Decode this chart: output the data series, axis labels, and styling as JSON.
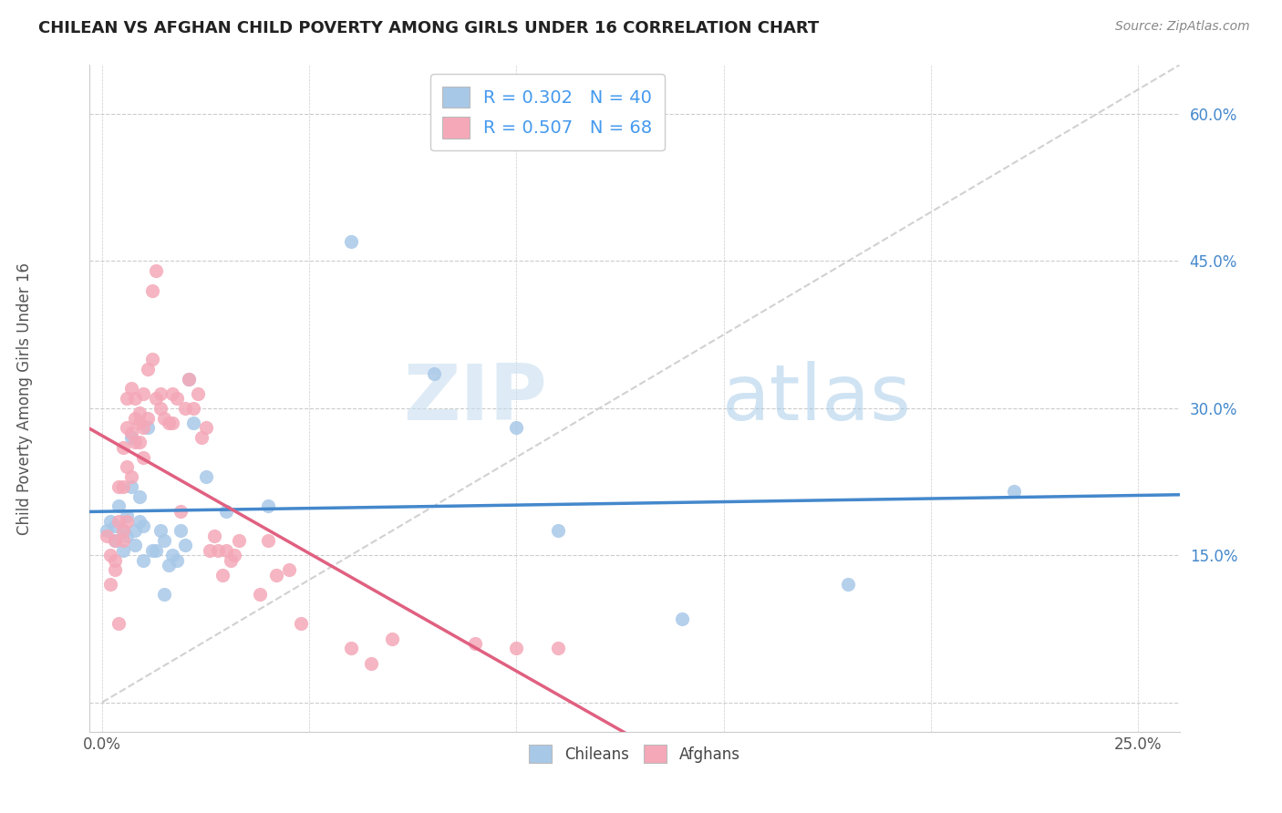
{
  "title": "CHILEAN VS AFGHAN CHILD POVERTY AMONG GIRLS UNDER 16 CORRELATION CHART",
  "source": "Source: ZipAtlas.com",
  "ylabel": "Child Poverty Among Girls Under 16",
  "xlim": [
    -0.3,
    26.0
  ],
  "ylim": [
    -3.0,
    65.0
  ],
  "x_ticks": [
    0.0,
    5.0,
    10.0,
    15.0,
    20.0,
    25.0
  ],
  "x_tick_labels": [
    "0.0%",
    "",
    "",
    "",
    "",
    "25.0%"
  ],
  "y_ticks": [
    0.0,
    15.0,
    30.0,
    45.0,
    60.0
  ],
  "y_tick_labels": [
    "",
    "15.0%",
    "30.0%",
    "45.0%",
    "60.0%"
  ],
  "chilean_R": 0.302,
  "chilean_N": 40,
  "afghan_R": 0.507,
  "afghan_N": 68,
  "chilean_color": "#a8c8e8",
  "afghan_color": "#f4a8b8",
  "chilean_line_color": "#4488cc",
  "afghan_line_color": "#e06080",
  "diagonal_color": "#cccccc",
  "legend_text_color": "#4499ee",
  "watermark_zip": "ZIP",
  "watermark_atlas": "atlas",
  "chilean_points": [
    [
      0.1,
      17.5
    ],
    [
      0.2,
      18.5
    ],
    [
      0.3,
      16.5
    ],
    [
      0.3,
      18.0
    ],
    [
      0.4,
      20.0
    ],
    [
      0.5,
      17.5
    ],
    [
      0.5,
      15.5
    ],
    [
      0.6,
      19.0
    ],
    [
      0.6,
      17.0
    ],
    [
      0.7,
      22.0
    ],
    [
      0.7,
      27.0
    ],
    [
      0.8,
      16.0
    ],
    [
      0.8,
      17.5
    ],
    [
      0.9,
      21.0
    ],
    [
      0.9,
      18.5
    ],
    [
      1.0,
      18.0
    ],
    [
      1.0,
      14.5
    ],
    [
      1.1,
      28.0
    ],
    [
      1.2,
      15.5
    ],
    [
      1.3,
      15.5
    ],
    [
      1.4,
      17.5
    ],
    [
      1.5,
      16.5
    ],
    [
      1.5,
      11.0
    ],
    [
      1.6,
      14.0
    ],
    [
      1.7,
      15.0
    ],
    [
      1.8,
      14.5
    ],
    [
      1.9,
      17.5
    ],
    [
      2.0,
      16.0
    ],
    [
      2.1,
      33.0
    ],
    [
      2.2,
      28.5
    ],
    [
      2.5,
      23.0
    ],
    [
      3.0,
      19.5
    ],
    [
      4.0,
      20.0
    ],
    [
      6.0,
      47.0
    ],
    [
      8.0,
      33.5
    ],
    [
      10.0,
      28.0
    ],
    [
      11.0,
      17.5
    ],
    [
      14.0,
      8.5
    ],
    [
      18.0,
      12.0
    ],
    [
      22.0,
      21.5
    ]
  ],
  "afghan_points": [
    [
      0.1,
      17.0
    ],
    [
      0.2,
      12.0
    ],
    [
      0.2,
      15.0
    ],
    [
      0.3,
      14.5
    ],
    [
      0.3,
      13.5
    ],
    [
      0.3,
      16.5
    ],
    [
      0.4,
      22.0
    ],
    [
      0.4,
      18.5
    ],
    [
      0.4,
      8.0
    ],
    [
      0.5,
      17.5
    ],
    [
      0.5,
      16.5
    ],
    [
      0.5,
      22.0
    ],
    [
      0.5,
      26.0
    ],
    [
      0.6,
      28.0
    ],
    [
      0.6,
      31.0
    ],
    [
      0.6,
      18.5
    ],
    [
      0.6,
      24.0
    ],
    [
      0.7,
      32.0
    ],
    [
      0.7,
      27.5
    ],
    [
      0.7,
      23.0
    ],
    [
      0.8,
      29.0
    ],
    [
      0.8,
      26.5
    ],
    [
      0.8,
      31.0
    ],
    [
      0.9,
      28.5
    ],
    [
      0.9,
      29.5
    ],
    [
      0.9,
      26.5
    ],
    [
      1.0,
      28.0
    ],
    [
      1.0,
      31.5
    ],
    [
      1.0,
      25.0
    ],
    [
      1.1,
      34.0
    ],
    [
      1.1,
      29.0
    ],
    [
      1.2,
      42.0
    ],
    [
      1.2,
      35.0
    ],
    [
      1.3,
      31.0
    ],
    [
      1.3,
      44.0
    ],
    [
      1.4,
      31.5
    ],
    [
      1.4,
      30.0
    ],
    [
      1.5,
      29.0
    ],
    [
      1.6,
      28.5
    ],
    [
      1.7,
      31.5
    ],
    [
      1.7,
      28.5
    ],
    [
      1.8,
      31.0
    ],
    [
      1.9,
      19.5
    ],
    [
      2.0,
      30.0
    ],
    [
      2.1,
      33.0
    ],
    [
      2.2,
      30.0
    ],
    [
      2.3,
      31.5
    ],
    [
      2.4,
      27.0
    ],
    [
      2.5,
      28.0
    ],
    [
      2.6,
      15.5
    ],
    [
      2.7,
      17.0
    ],
    [
      2.8,
      15.5
    ],
    [
      2.9,
      13.0
    ],
    [
      3.0,
      15.5
    ],
    [
      3.1,
      14.5
    ],
    [
      3.2,
      15.0
    ],
    [
      3.3,
      16.5
    ],
    [
      3.8,
      11.0
    ],
    [
      4.0,
      16.5
    ],
    [
      4.2,
      13.0
    ],
    [
      4.5,
      13.5
    ],
    [
      4.8,
      8.0
    ],
    [
      6.0,
      5.5
    ],
    [
      6.5,
      4.0
    ],
    [
      7.0,
      6.5
    ],
    [
      9.0,
      6.0
    ],
    [
      10.0,
      5.5
    ],
    [
      11.0,
      5.5
    ]
  ]
}
